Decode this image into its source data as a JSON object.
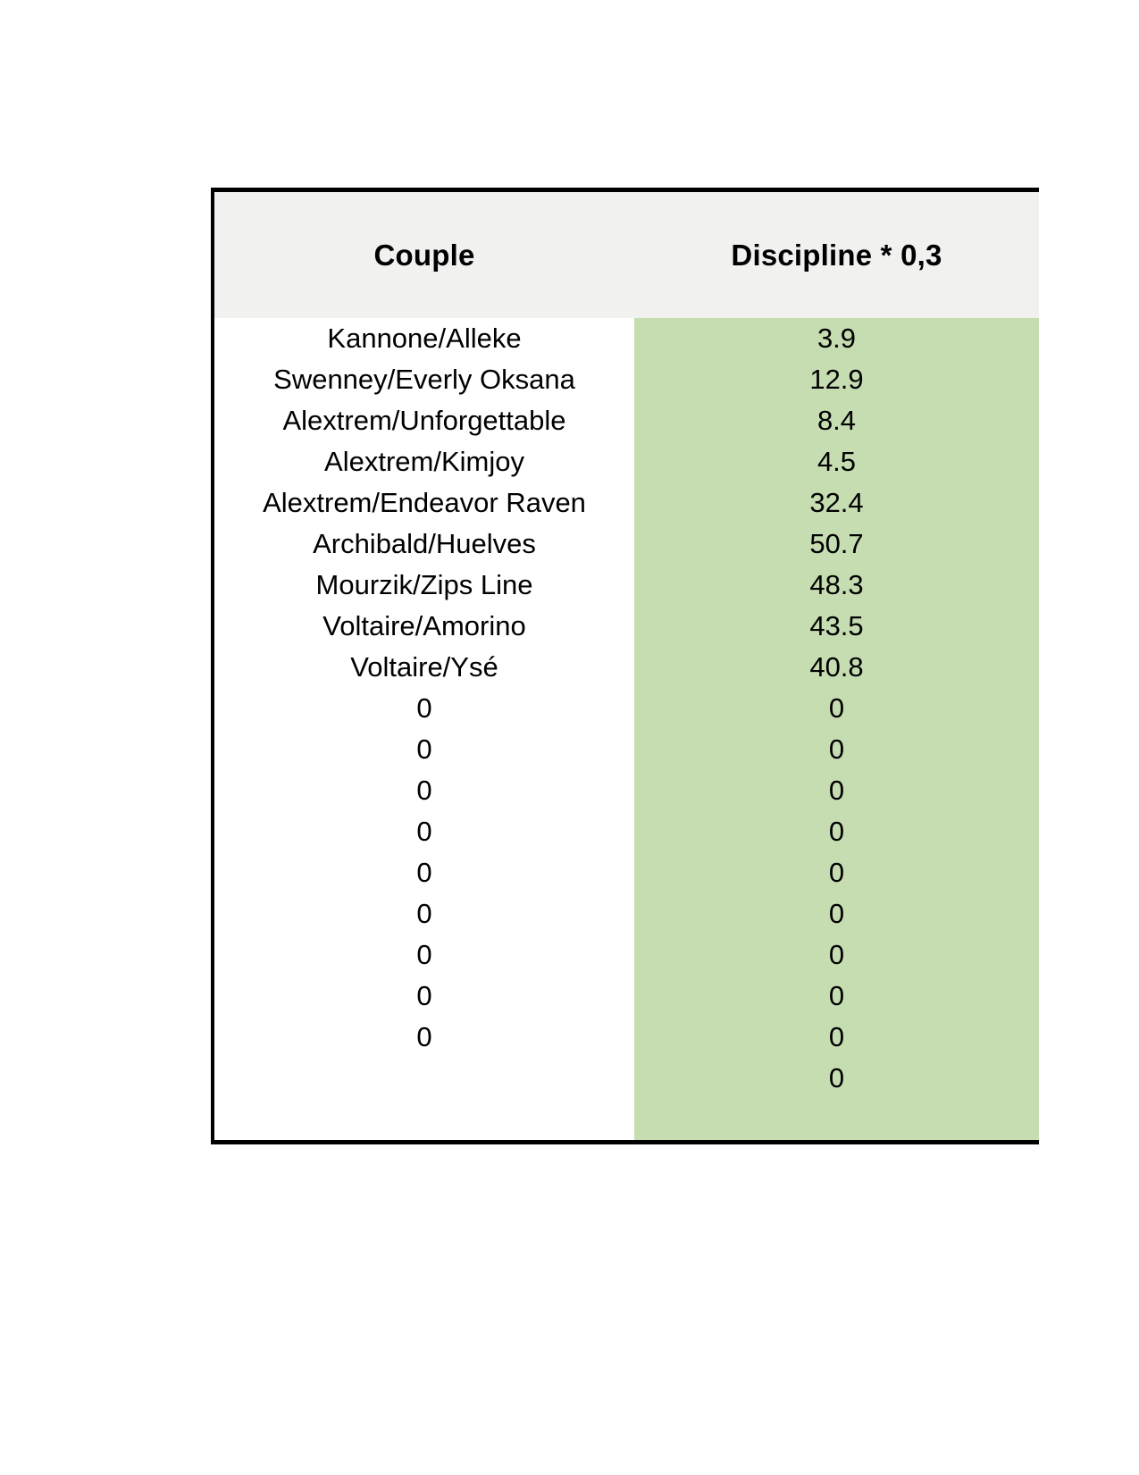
{
  "table": {
    "columns": [
      {
        "label": "Couple"
      },
      {
        "label": "Discipline * 0,3"
      }
    ],
    "rows": [
      {
        "couple": "Kannone/Alleke",
        "value": "3.9"
      },
      {
        "couple": "Swenney/Everly Oksana",
        "value": "12.9"
      },
      {
        "couple": "Alextrem/Unforgettable",
        "value": "8.4"
      },
      {
        "couple": "Alextrem/Kimjoy",
        "value": "4.5"
      },
      {
        "couple": "Alextrem/Endeavor Raven",
        "value": "32.4"
      },
      {
        "couple": "Archibald/Huelves",
        "value": "50.7"
      },
      {
        "couple": "Mourzik/Zips Line",
        "value": "48.3"
      },
      {
        "couple": "Voltaire/Amorino",
        "value": "43.5"
      },
      {
        "couple": "Voltaire/Ysé",
        "value": "40.8"
      },
      {
        "couple": "0",
        "value": "0"
      },
      {
        "couple": "0",
        "value": "0"
      },
      {
        "couple": "0",
        "value": "0"
      },
      {
        "couple": "0",
        "value": "0"
      },
      {
        "couple": "0",
        "value": "0"
      },
      {
        "couple": "0",
        "value": "0"
      },
      {
        "couple": "0",
        "value": "0"
      },
      {
        "couple": "0",
        "value": "0"
      },
      {
        "couple": "0",
        "value": "0"
      },
      {
        "couple": "",
        "value": "0"
      },
      {
        "couple": "",
        "value": ""
      }
    ],
    "colors": {
      "header_bg": "#f1f1f0",
      "value_column_bg": "#c6ddb2",
      "border": "#000000",
      "text": "#000000",
      "page_bg": "#ffffff"
    }
  }
}
